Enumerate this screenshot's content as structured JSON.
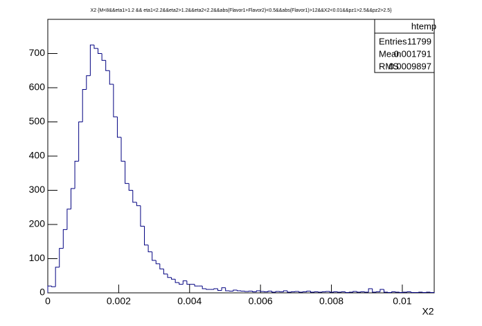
{
  "chart_data": {
    "type": "histogram",
    "title": "X2 {M<8&&eta1>1.2 && eta1<2.2&&eta2>1.2&&eta2<2.2&&abs(Flavor1+Flavor2)<0.5&&abs(Flavor1)>12&&X2<0.01&&pz1>2.5&&pz2>2.5}",
    "x_label": "X2",
    "color": "#000080",
    "bins": [
      0,
      0.000109,
      0.000218,
      0.000327,
      0.000436,
      0.000545,
      0.000654,
      0.000763,
      0.000872,
      0.000981,
      0.00109,
      0.001199,
      0.001308,
      0.001417,
      0.001526,
      0.001635,
      0.001744,
      0.001853,
      0.001962,
      0.002071,
      0.00218,
      0.002289,
      0.002398,
      0.002507,
      0.002616,
      0.002725,
      0.002834,
      0.002943,
      0.003052,
      0.003161,
      0.00327,
      0.003379,
      0.003488,
      0.003597,
      0.003706,
      0.003815,
      0.003924,
      0.004033,
      0.004142,
      0.004251,
      0.00436,
      0.004469,
      0.004578,
      0.004687,
      0.004796,
      0.004905,
      0.005014,
      0.005123,
      0.005232,
      0.005341,
      0.00545,
      0.005559,
      0.005668,
      0.005777,
      0.005886,
      0.005995,
      0.006104,
      0.006213,
      0.006322,
      0.006431,
      0.00654,
      0.006649,
      0.006758,
      0.006867,
      0.006976,
      0.007085,
      0.007194,
      0.007303,
      0.007412,
      0.007521,
      0.00763,
      0.007739,
      0.007848,
      0.007957,
      0.008066,
      0.008175,
      0.008284,
      0.008393,
      0.008502,
      0.008611,
      0.00872,
      0.008829,
      0.008938,
      0.009047,
      0.009156,
      0.009265,
      0.009374,
      0.009483,
      0.009592,
      0.009701,
      0.00981,
      0.009919,
      0.010028,
      0.010137,
      0.010246,
      0.010355,
      0.010464,
      0.010573,
      0.010682,
      0.010791,
      0.0109
    ],
    "values": [
      20,
      18,
      75,
      130,
      185,
      245,
      305,
      385,
      500,
      595,
      635,
      725,
      715,
      700,
      680,
      650,
      610,
      515,
      455,
      385,
      320,
      300,
      265,
      255,
      195,
      140,
      120,
      95,
      85,
      70,
      55,
      45,
      40,
      30,
      25,
      35,
      25,
      25,
      20,
      20,
      12,
      10,
      10,
      12,
      7,
      15,
      6,
      5,
      8,
      6,
      5,
      4,
      5,
      3,
      6,
      4,
      3,
      5,
      2,
      4,
      3,
      6,
      2,
      3,
      4,
      2,
      3,
      5,
      2,
      3,
      2,
      3,
      4,
      2,
      3,
      2,
      3,
      1,
      2,
      4,
      2,
      3,
      2,
      12,
      2,
      3,
      10,
      2,
      1,
      3,
      2,
      1,
      2,
      3,
      1,
      1,
      2,
      1,
      2,
      1
    ],
    "xlim": [
      0,
      0.0109
    ],
    "ylim": [
      0,
      800
    ],
    "xticks": [
      0,
      0.002,
      0.004,
      0.006,
      0.008,
      0.01
    ],
    "yticks": [
      0,
      100,
      200,
      300,
      400,
      500,
      600,
      700
    ],
    "stats": {
      "title": "htemp",
      "rows": [
        {
          "label": "Entries",
          "value": 11799
        },
        {
          "label": "Mean",
          "value": 0.001791
        },
        {
          "label": "RMS",
          "value": 0.0009897
        }
      ]
    }
  }
}
